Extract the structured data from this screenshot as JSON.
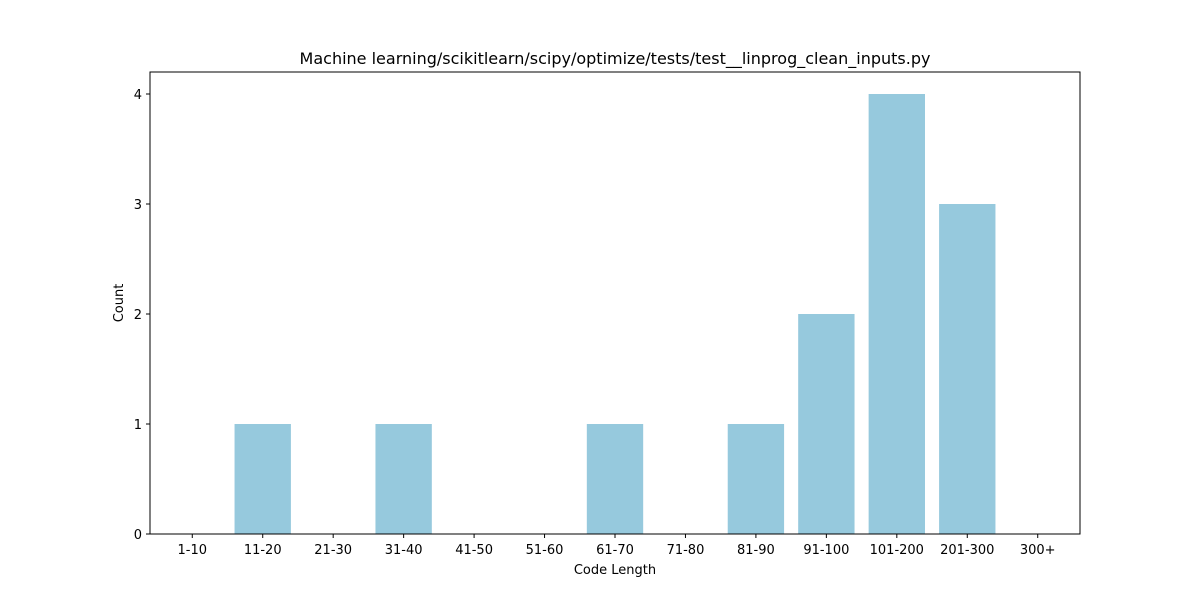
{
  "chart_data": {
    "type": "bar",
    "title": "Machine learning/scikitlearn/scipy/optimize/tests/test__linprog_clean_inputs.py",
    "xlabel": "Code Length",
    "ylabel": "Count",
    "categories": [
      "1-10",
      "11-20",
      "21-30",
      "31-40",
      "41-50",
      "51-60",
      "61-70",
      "71-80",
      "81-90",
      "91-100",
      "101-200",
      "201-300",
      "300+"
    ],
    "values": [
      0,
      1,
      0,
      1,
      0,
      0,
      1,
      0,
      1,
      2,
      4,
      3,
      0
    ],
    "ylim": [
      0,
      4.2
    ],
    "yticks": [
      0,
      1,
      2,
      3,
      4
    ],
    "bar_color": "#96c9dd",
    "grid": false,
    "legend": "none"
  }
}
